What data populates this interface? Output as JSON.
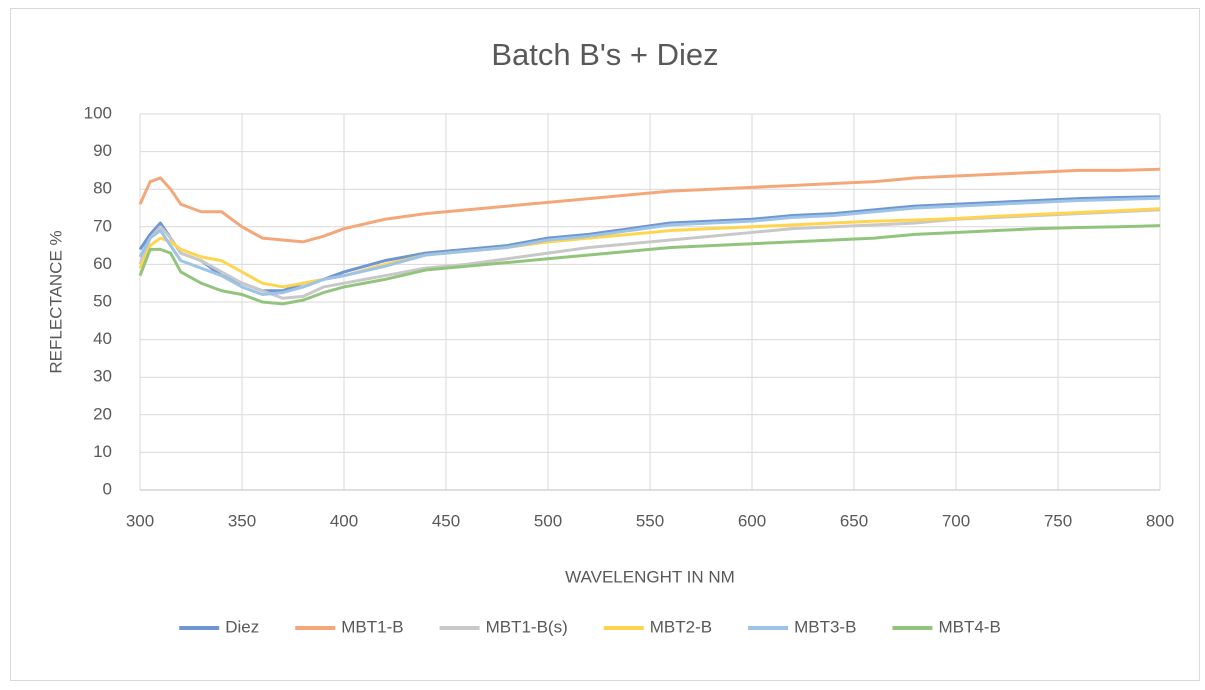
{
  "chart_data": {
    "type": "line",
    "title": "Batch B's + Diez",
    "x_label": "WAVELENGHT IN NM",
    "y_label": "REFLECTANCE %",
    "x": [
      300,
      305,
      310,
      315,
      320,
      330,
      340,
      350,
      360,
      370,
      380,
      390,
      400,
      420,
      440,
      460,
      480,
      500,
      520,
      540,
      560,
      580,
      600,
      620,
      640,
      660,
      680,
      700,
      720,
      740,
      760,
      780,
      800
    ],
    "series": [
      {
        "name": "Diez",
        "color": "#6f96d2",
        "values": [
          64,
          68,
          71,
          67,
          63,
          61,
          57,
          55,
          53,
          53,
          55,
          56,
          58,
          61,
          63,
          64,
          65,
          67,
          68,
          69.5,
          71,
          71.5,
          72,
          73,
          73.5,
          74.5,
          75.5,
          76,
          76.5,
          77,
          77.5,
          77.8,
          78
        ]
      },
      {
        "name": "MBT1-B",
        "color": "#f4a77a",
        "values": [
          76,
          82,
          83,
          80,
          76,
          74,
          74,
          70,
          67,
          66.5,
          66,
          67.5,
          69.5,
          72,
          73.5,
          74.5,
          75.5,
          76.5,
          77.5,
          78.5,
          79.5,
          80,
          80.5,
          81,
          81.5,
          82,
          83,
          83.5,
          84,
          84.5,
          85,
          85,
          85.3
        ]
      },
      {
        "name": "MBT1-B(s)",
        "color": "#c8c8c8",
        "values": [
          60,
          67,
          70,
          67,
          63,
          61,
          58,
          55,
          53,
          51,
          51.5,
          54,
          55,
          57,
          59,
          60,
          61.5,
          63,
          64.5,
          65.5,
          66.5,
          67.5,
          68.5,
          69.5,
          70,
          70.5,
          71,
          72,
          72.5,
          73,
          73.5,
          74,
          74.5
        ]
      },
      {
        "name": "MBT2-B",
        "color": "#ffd54f",
        "values": [
          59,
          65,
          67,
          66,
          64,
          62,
          61,
          58,
          55,
          54,
          55,
          56,
          57,
          60,
          62.5,
          63.5,
          64.5,
          66,
          67,
          68,
          69,
          69.5,
          70,
          70.5,
          71,
          71.5,
          71.8,
          72.2,
          72.8,
          73.3,
          73.8,
          74.3,
          74.8
        ]
      },
      {
        "name": "MBT3-B",
        "color": "#9dc3e6",
        "values": [
          62,
          67,
          69,
          65,
          61,
          59,
          57,
          54,
          52,
          52.5,
          54,
          56,
          57,
          59.5,
          62.5,
          63.5,
          64.5,
          66.5,
          67.5,
          69,
          70.5,
          71,
          71.5,
          72.5,
          73,
          74,
          75,
          75.5,
          76,
          76.5,
          77,
          77.3,
          77.6
        ]
      },
      {
        "name": "MBT4-B",
        "color": "#93c47d",
        "values": [
          57,
          64,
          64,
          63,
          58,
          55,
          53,
          52,
          50,
          49.5,
          50.5,
          52.5,
          54,
          56,
          58.5,
          59.5,
          60.5,
          61.5,
          62.5,
          63.5,
          64.5,
          65,
          65.5,
          66,
          66.5,
          67,
          68,
          68.5,
          69,
          69.5,
          69.8,
          70,
          70.3
        ]
      }
    ],
    "xlim": [
      300,
      800
    ],
    "xticks": [
      300,
      350,
      400,
      450,
      500,
      550,
      600,
      650,
      700,
      750,
      800
    ],
    "ylim": [
      0,
      100
    ],
    "yticks": [
      0,
      10,
      20,
      30,
      40,
      50,
      60,
      70,
      80,
      90,
      100
    ],
    "grid": true,
    "legend": "bottom"
  }
}
